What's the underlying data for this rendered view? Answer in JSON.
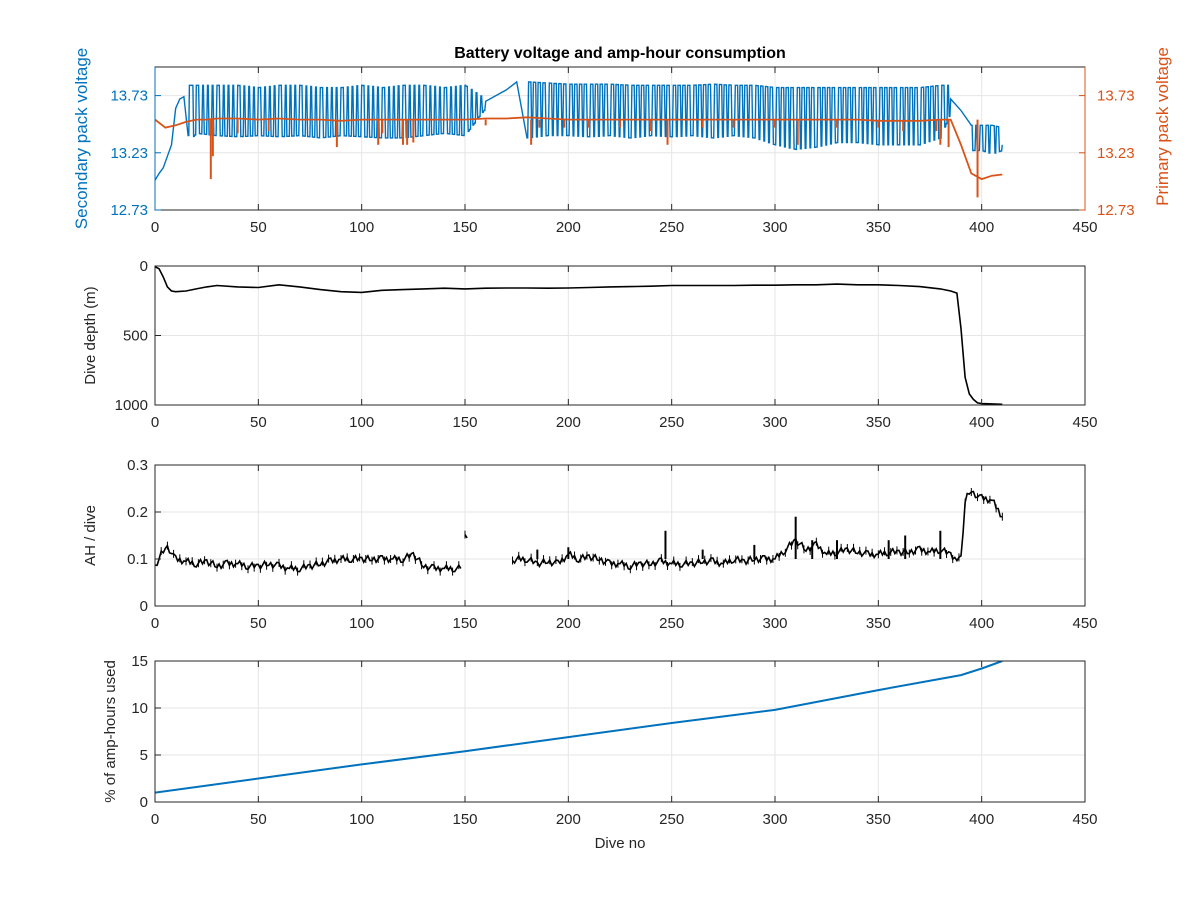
{
  "colors": {
    "blue": "#0072BD",
    "orange": "#D95319",
    "black": "#000000",
    "grid": "#e6e6e6",
    "axis": "#262626"
  },
  "chart_data": [
    {
      "type": "line",
      "title": "Battery voltage and amp-hour consumption",
      "xlabel": "",
      "xlim": [
        0,
        450
      ],
      "xticks": [
        0,
        50,
        100,
        150,
        200,
        250,
        300,
        350,
        400,
        450
      ],
      "ylim": [
        12.73,
        13.98
      ],
      "yticks": [
        12.73,
        13.23,
        13.73
      ],
      "ylabel": "Secondary pack voltage",
      "y2lim": [
        12.73,
        13.98
      ],
      "y2ticks": [
        12.73,
        13.23,
        13.73
      ],
      "y2label": "Primary pack voltage",
      "grid": true,
      "series": [
        {
          "color": "#0072BD",
          "axis": "left",
          "x": [
            0,
            2,
            4,
            6,
            8,
            10,
            12,
            14,
            16,
            18,
            20,
            30,
            40,
            50,
            60,
            70,
            80,
            90,
            100,
            110,
            120,
            130,
            140,
            150,
            160,
            170,
            175,
            180,
            190,
            200,
            210,
            220,
            230,
            240,
            250,
            260,
            270,
            280,
            290,
            300,
            310,
            320,
            330,
            340,
            350,
            360,
            370,
            380,
            385,
            390,
            395,
            400,
            405,
            410
          ],
          "y": [
            12.99,
            13.05,
            13.1,
            13.2,
            13.3,
            13.62,
            13.7,
            13.72,
            13.5,
            13.75,
            13.6,
            13.62,
            13.55,
            13.62,
            13.6,
            13.57,
            13.6,
            13.58,
            13.62,
            13.55,
            13.6,
            13.5,
            13.62,
            13.58,
            13.68,
            13.78,
            13.85,
            13.6,
            13.62,
            13.6,
            13.55,
            13.62,
            13.6,
            13.58,
            13.62,
            13.6,
            13.58,
            13.62,
            13.6,
            13.5,
            13.55,
            13.52,
            13.6,
            13.55,
            13.6,
            13.58,
            13.6,
            13.62,
            13.7,
            13.6,
            13.38,
            13.42,
            13.35,
            13.3
          ],
          "hi": [
            13.03,
            13.1,
            13.2,
            13.35,
            13.55,
            13.72,
            13.75,
            13.76,
            13.82,
            13.82,
            13.82,
            13.82,
            13.82,
            13.8,
            13.82,
            13.82,
            13.8,
            13.8,
            13.82,
            13.8,
            13.82,
            13.82,
            13.8,
            13.82,
            13.7,
            13.8,
            13.85,
            13.85,
            13.84,
            13.83,
            13.83,
            13.83,
            13.82,
            13.82,
            13.82,
            13.82,
            13.83,
            13.82,
            13.82,
            13.8,
            13.8,
            13.8,
            13.8,
            13.8,
            13.8,
            13.8,
            13.8,
            13.82,
            13.82,
            13.8,
            13.47,
            13.47,
            13.47,
            13.45
          ],
          "lo": [
            12.97,
            13.02,
            13.06,
            13.15,
            13.2,
            13.5,
            13.62,
            13.65,
            13.38,
            13.36,
            13.4,
            13.38,
            13.37,
            13.38,
            13.37,
            13.38,
            13.36,
            13.38,
            13.37,
            13.36,
            13.36,
            13.38,
            13.4,
            13.38,
            13.62,
            13.72,
            13.84,
            13.36,
            13.38,
            13.38,
            13.37,
            13.38,
            13.36,
            13.38,
            13.37,
            13.38,
            13.36,
            13.38,
            13.36,
            13.3,
            13.26,
            13.28,
            13.32,
            13.32,
            13.3,
            13.3,
            13.3,
            13.36,
            13.58,
            13.5,
            13.25,
            13.25,
            13.22,
            13.25
          ],
          "osc": [
            0,
            0,
            0,
            0,
            0,
            0,
            0,
            0,
            1,
            1,
            1,
            1,
            1,
            1,
            1,
            1,
            1,
            1,
            1,
            1,
            1,
            1,
            1,
            1,
            0,
            0,
            0,
            1,
            1,
            1,
            1,
            1,
            1,
            1,
            1,
            1,
            1,
            1,
            1,
            1,
            1,
            1,
            1,
            1,
            1,
            1,
            1,
            1,
            0,
            0,
            1,
            1,
            1,
            1
          ]
        },
        {
          "color": "#D95319",
          "axis": "right",
          "x": [
            0,
            5,
            10,
            15,
            20,
            25,
            30,
            40,
            50,
            60,
            70,
            80,
            90,
            100,
            110,
            120,
            130,
            140,
            150,
            160,
            170,
            180,
            190,
            200,
            210,
            220,
            230,
            240,
            250,
            260,
            270,
            280,
            290,
            300,
            310,
            320,
            330,
            340,
            350,
            360,
            370,
            380,
            385,
            390,
            395,
            400,
            405,
            410
          ],
          "y": [
            13.52,
            13.45,
            13.47,
            13.5,
            13.52,
            13.52,
            13.53,
            13.53,
            13.52,
            13.53,
            13.52,
            13.52,
            13.51,
            13.52,
            13.52,
            13.52,
            13.52,
            13.52,
            13.52,
            13.53,
            13.53,
            13.54,
            13.53,
            13.52,
            13.52,
            13.52,
            13.52,
            13.52,
            13.52,
            13.52,
            13.52,
            13.52,
            13.52,
            13.52,
            13.52,
            13.52,
            13.52,
            13.52,
            13.51,
            13.51,
            13.51,
            13.52,
            13.52,
            13.3,
            13.05,
            13.0,
            13.03,
            13.04
          ]
        }
      ],
      "spikes": [
        [
          27,
          13.0
        ],
        [
          28,
          13.2
        ],
        [
          40,
          13.4
        ],
        [
          55,
          13.42
        ],
        [
          88,
          13.28
        ],
        [
          108,
          13.3
        ],
        [
          110,
          13.4
        ],
        [
          120,
          13.3
        ],
        [
          122,
          13.3
        ],
        [
          125,
          13.32
        ],
        [
          160,
          13.47
        ],
        [
          182,
          13.3
        ],
        [
          186,
          13.45
        ],
        [
          198,
          13.45
        ],
        [
          210,
          13.45
        ],
        [
          225,
          13.45
        ],
        [
          240,
          13.42
        ],
        [
          248,
          13.3
        ],
        [
          265,
          13.45
        ],
        [
          280,
          13.45
        ],
        [
          300,
          13.45
        ],
        [
          311,
          13.3
        ],
        [
          330,
          13.45
        ],
        [
          350,
          13.45
        ],
        [
          362,
          13.42
        ],
        [
          378,
          13.42
        ],
        [
          380,
          13.3
        ],
        [
          384,
          13.28
        ],
        [
          398,
          12.84
        ]
      ]
    },
    {
      "type": "line",
      "title": "",
      "xlabel": "",
      "ylabel": "Dive depth (m)",
      "xlim": [
        0,
        450
      ],
      "xticks": [
        0,
        50,
        100,
        150,
        200,
        250,
        300,
        350,
        400,
        450
      ],
      "ylim": [
        0,
        1000
      ],
      "yticks": [
        0,
        500,
        1000
      ],
      "yreversed": true,
      "grid": true,
      "series": [
        {
          "color": "#000000",
          "x": [
            0,
            2,
            4,
            6,
            8,
            10,
            15,
            20,
            25,
            30,
            40,
            50,
            60,
            70,
            80,
            90,
            100,
            110,
            120,
            130,
            140,
            150,
            160,
            170,
            180,
            190,
            200,
            210,
            220,
            230,
            240,
            250,
            260,
            270,
            280,
            290,
            300,
            310,
            320,
            330,
            340,
            350,
            360,
            370,
            380,
            385,
            388,
            390,
            392,
            394,
            396,
            398,
            400,
            405,
            410
          ],
          "y": [
            5,
            20,
            80,
            150,
            180,
            185,
            180,
            165,
            150,
            140,
            150,
            155,
            135,
            150,
            170,
            185,
            190,
            175,
            170,
            165,
            160,
            165,
            160,
            158,
            158,
            160,
            158,
            155,
            150,
            148,
            145,
            140,
            140,
            140,
            140,
            138,
            138,
            135,
            135,
            130,
            135,
            135,
            140,
            148,
            165,
            180,
            195,
            450,
            800,
            920,
            960,
            985,
            990,
            992,
            995
          ]
        }
      ]
    },
    {
      "type": "line",
      "title": "",
      "xlabel": "",
      "ylabel": "AH / dive",
      "xlim": [
        0,
        450
      ],
      "xticks": [
        0,
        50,
        100,
        150,
        200,
        250,
        300,
        350,
        400,
        450
      ],
      "ylim": [
        0,
        0.3
      ],
      "yticks": [
        0,
        0.1,
        0.2,
        0.3
      ],
      "grid": true,
      "series": [
        {
          "color": "#000000",
          "x": [
            0,
            2,
            4,
            6,
            8,
            10,
            15,
            20,
            25,
            30,
            35,
            40,
            45,
            50,
            55,
            60,
            65,
            70,
            75,
            80,
            85,
            90,
            95,
            100,
            105,
            110,
            115,
            120,
            125,
            130,
            135,
            140,
            145,
            148,
            null,
            150,
            151,
            null,
            173,
            175,
            180,
            185,
            190,
            195,
            200,
            205,
            210,
            215,
            220,
            225,
            230,
            235,
            240,
            245,
            250,
            255,
            260,
            265,
            270,
            275,
            280,
            285,
            290,
            295,
            300,
            305,
            310,
            315,
            320,
            325,
            330,
            335,
            340,
            345,
            350,
            355,
            360,
            365,
            370,
            375,
            380,
            385,
            388,
            390,
            392,
            394,
            396,
            398,
            400,
            405,
            410
          ],
          "y": [
            0.08,
            0.1,
            0.12,
            0.125,
            0.115,
            0.1,
            0.095,
            0.09,
            0.095,
            0.085,
            0.09,
            0.09,
            0.085,
            0.085,
            0.09,
            0.085,
            0.08,
            0.08,
            0.085,
            0.09,
            0.095,
            0.1,
            0.1,
            0.1,
            0.1,
            0.1,
            0.1,
            0.1,
            0.11,
            0.085,
            0.08,
            0.08,
            0.08,
            0.08,
            null,
            0.145,
            0.145,
            null,
            0.09,
            0.1,
            0.1,
            0.09,
            0.095,
            0.09,
            0.11,
            0.1,
            0.105,
            0.1,
            0.09,
            0.09,
            0.085,
            0.09,
            0.09,
            0.095,
            0.09,
            0.09,
            0.09,
            0.095,
            0.095,
            0.09,
            0.1,
            0.095,
            0.1,
            0.1,
            0.1,
            0.12,
            0.14,
            0.12,
            0.13,
            0.11,
            0.115,
            0.12,
            0.115,
            0.11,
            0.11,
            0.115,
            0.115,
            0.115,
            0.12,
            0.115,
            0.12,
            0.11,
            0.1,
            0.1,
            0.22,
            0.245,
            0.24,
            0.235,
            0.23,
            0.225,
            0.19
          ]
        }
      ],
      "spikes": [
        [
          247,
          0.16
        ],
        [
          310,
          0.19
        ],
        [
          318,
          0.14
        ],
        [
          265,
          0.12
        ],
        [
          185,
          0.12
        ],
        [
          200,
          0.125
        ],
        [
          290,
          0.13
        ],
        [
          330,
          0.14
        ],
        [
          355,
          0.14
        ],
        [
          363,
          0.15
        ],
        [
          380,
          0.16
        ]
      ]
    },
    {
      "type": "line",
      "title": "",
      "xlabel": "Dive no",
      "ylabel": "% of amp-hours used",
      "xlim": [
        0,
        450
      ],
      "xticks": [
        0,
        50,
        100,
        150,
        200,
        250,
        300,
        350,
        400,
        450
      ],
      "ylim": [
        0,
        15
      ],
      "yticks": [
        0,
        5,
        10,
        15
      ],
      "grid": true,
      "series": [
        {
          "color": "#0072BD",
          "x": [
            0,
            50,
            100,
            150,
            200,
            250,
            300,
            350,
            390,
            400,
            410
          ],
          "y": [
            1.0,
            2.5,
            4.0,
            5.4,
            6.9,
            8.4,
            9.8,
            11.9,
            13.5,
            14.2,
            15.0
          ]
        }
      ]
    }
  ]
}
